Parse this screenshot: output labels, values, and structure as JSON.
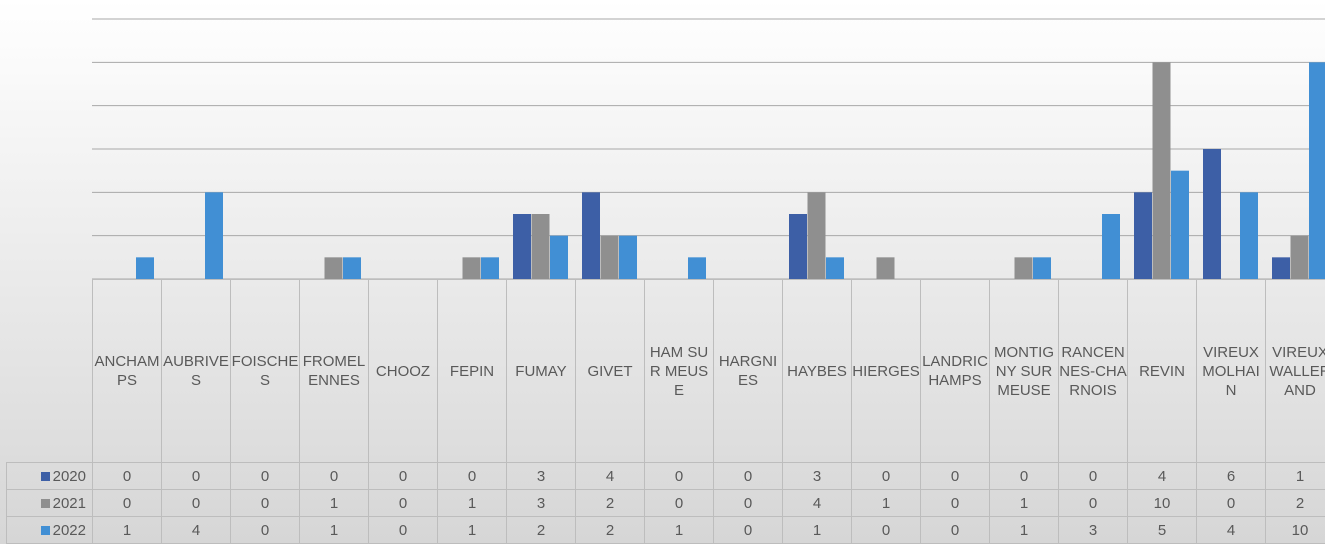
{
  "chart_data": {
    "type": "bar",
    "categories": [
      "ANCHAMPS",
      "AUBRIVES",
      "FOISCHES",
      "FROMELENNES",
      "CHOOZ",
      "FEPIN",
      "FUMAY",
      "GIVET",
      "HAM SUR MEUSE",
      "HARGNIES",
      "HAYBES",
      "HIERGES",
      "LANDRICHAMPS",
      "MONTIGNY SUR MEUSE",
      "RANCENNES-CHARNOIS",
      "REVIN",
      "VIREUX MOLHAIN",
      "VIREUX WALLERAND"
    ],
    "series": [
      {
        "name": "2020",
        "color": "#3d5fa6",
        "values": [
          0,
          0,
          0,
          0,
          0,
          0,
          3,
          4,
          0,
          0,
          3,
          0,
          0,
          0,
          0,
          4,
          6,
          1
        ]
      },
      {
        "name": "2021",
        "color": "#8f8f8f",
        "values": [
          0,
          0,
          0,
          1,
          0,
          1,
          3,
          2,
          0,
          0,
          4,
          1,
          0,
          1,
          0,
          10,
          0,
          2
        ]
      },
      {
        "name": "2022",
        "color": "#418fd4",
        "values": [
          1,
          4,
          0,
          1,
          0,
          1,
          2,
          2,
          1,
          0,
          1,
          0,
          0,
          1,
          3,
          5,
          4,
          10
        ]
      }
    ],
    "ylim": [
      0,
      12
    ],
    "yticks": [
      0,
      2,
      4,
      6,
      8,
      10,
      12
    ],
    "grid": true,
    "legend": "table"
  }
}
